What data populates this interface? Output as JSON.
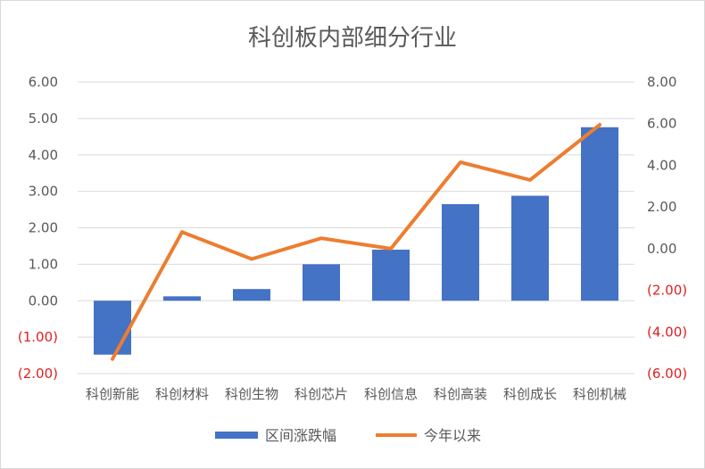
{
  "chart_data": {
    "type": "bar",
    "title": "科创板内部细分行业",
    "categories": [
      "科创新能",
      "科创材料",
      "科创生物",
      "科创芯片",
      "科创信息",
      "科创高装",
      "科创成长",
      "科创机械"
    ],
    "series": [
      {
        "name": "区间涨跌幅",
        "type": "bar",
        "axis": "left",
        "color": "#4472c4",
        "values": [
          -1.48,
          0.12,
          0.32,
          1.0,
          1.4,
          2.65,
          2.88,
          4.76
        ]
      },
      {
        "name": "今年以来",
        "type": "line",
        "axis": "right",
        "color": "#ed7d31",
        "values": [
          -5.3,
          0.8,
          -0.5,
          0.5,
          0.0,
          4.15,
          3.3,
          5.95
        ]
      }
    ],
    "y_left": {
      "ylim": [
        -2,
        6
      ],
      "ticks": [
        6,
        5,
        4,
        3,
        2,
        1,
        0,
        -1,
        -2
      ],
      "tick_labels": [
        "6.00",
        "5.00",
        "4.00",
        "3.00",
        "2.00",
        "1.00",
        "0.00",
        "(1.00)",
        "(2.00)"
      ]
    },
    "y_right": {
      "ylim": [
        -6,
        8
      ],
      "ticks": [
        8,
        6,
        4,
        2,
        0,
        -2,
        -4,
        -6
      ],
      "tick_labels": [
        "8.00",
        "6.00",
        "4.00",
        "2.00",
        "0.00",
        "(2.00)",
        "(4.00)",
        "(6.00)"
      ]
    },
    "negative_tick_color": "#e02020",
    "grid": true,
    "legend_position": "bottom"
  }
}
